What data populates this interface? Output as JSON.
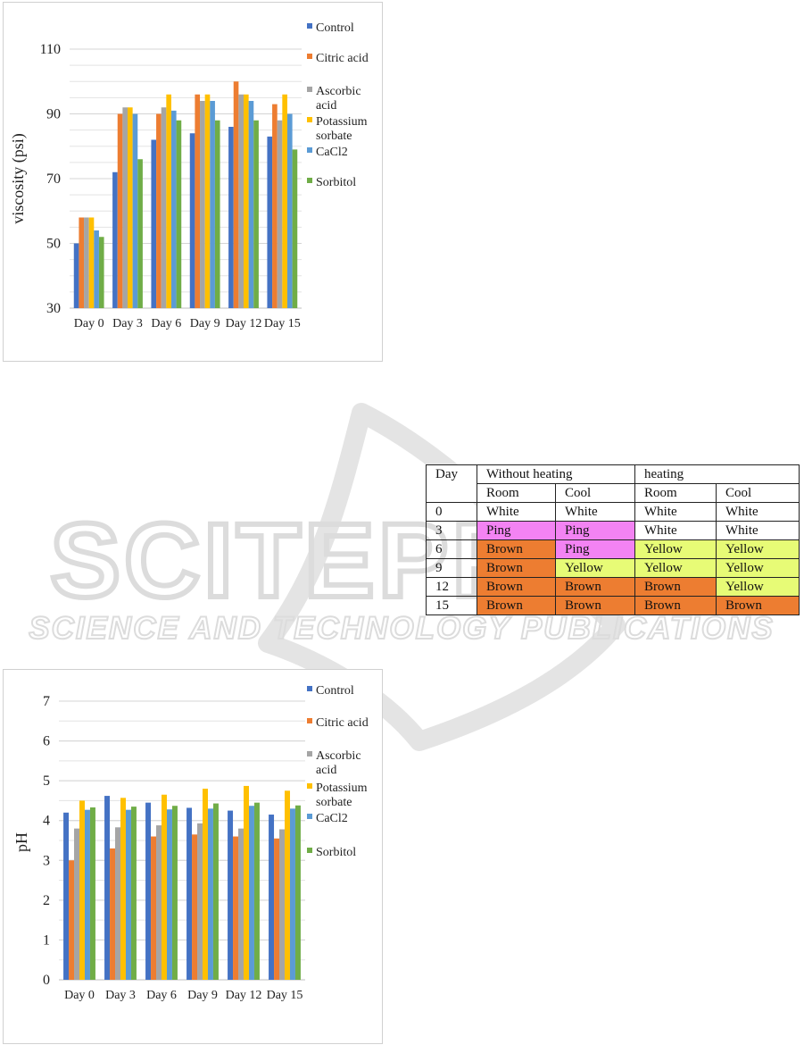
{
  "chart_data": [
    {
      "type": "bar",
      "title": "",
      "xlabel": "",
      "ylabel": "viscosity (psi)",
      "ylim": [
        30,
        110
      ],
      "yticks": [
        30,
        50,
        70,
        90,
        110
      ],
      "grid": true,
      "legend_position": "right",
      "categories": [
        "Day 0",
        "Day 3",
        "Day 6",
        "Day 9",
        "Day 12",
        "Day 15"
      ],
      "series": [
        {
          "name": "Control",
          "color": "#4472C4",
          "values": [
            50,
            72,
            82,
            84,
            86,
            83
          ]
        },
        {
          "name": "Citric acid",
          "color": "#ED7D31",
          "values": [
            58,
            90,
            90,
            96,
            100,
            93
          ]
        },
        {
          "name": "Ascorbic acid",
          "color": "#A5A5A5",
          "values": [
            58,
            92,
            92,
            94,
            96,
            88
          ]
        },
        {
          "name": "Potassium sorbate",
          "color": "#FFC000",
          "values": [
            58,
            92,
            96,
            96,
            96,
            96
          ]
        },
        {
          "name": "CaCl2",
          "color": "#5B9BD5",
          "values": [
            54,
            90,
            91,
            94,
            94,
            90
          ]
        },
        {
          "name": "Sorbitol",
          "color": "#70AD47",
          "values": [
            52,
            76,
            88,
            88,
            88,
            79
          ]
        }
      ]
    },
    {
      "type": "bar",
      "title": "",
      "xlabel": "",
      "ylabel": "pH",
      "ylim": [
        0,
        7
      ],
      "yticks": [
        0,
        1,
        2,
        3,
        4,
        5,
        6,
        7
      ],
      "grid": true,
      "legend_position": "right",
      "categories": [
        "Day 0",
        "Day 3",
        "Day 6",
        "Day 9",
        "Day 12",
        "Day 15"
      ],
      "series": [
        {
          "name": "Control",
          "color": "#4472C4",
          "values": [
            4.2,
            4.62,
            4.45,
            4.32,
            4.25,
            4.15
          ]
        },
        {
          "name": "Citric acid",
          "color": "#ED7D31",
          "values": [
            3.0,
            3.3,
            3.6,
            3.65,
            3.6,
            3.55
          ]
        },
        {
          "name": "Ascorbic acid",
          "color": "#A5A5A5",
          "values": [
            3.8,
            3.83,
            3.88,
            3.93,
            3.8,
            3.78
          ]
        },
        {
          "name": "Potassium sorbate",
          "color": "#FFC000",
          "values": [
            4.5,
            4.57,
            4.65,
            4.8,
            4.87,
            4.75
          ]
        },
        {
          "name": "CaCl2",
          "color": "#5B9BD5",
          "values": [
            4.27,
            4.27,
            4.28,
            4.3,
            4.37,
            4.3
          ]
        },
        {
          "name": "Sorbitol",
          "color": "#70AD47",
          "values": [
            4.33,
            4.35,
            4.37,
            4.43,
            4.45,
            4.38
          ]
        }
      ]
    }
  ],
  "legend_display": [
    [
      "Control"
    ],
    [
      "Citric acid"
    ],
    [
      "Ascorbic",
      "acid"
    ],
    [
      "Potassium",
      "sorbate"
    ],
    [
      "CaCl2"
    ],
    [
      "Sorbitol"
    ]
  ],
  "table": {
    "header_day": "Day",
    "group_without": "Without heating",
    "group_heating": "heating",
    "sub_headers": [
      "Room",
      "Cool",
      "Room",
      "Cool"
    ],
    "rows": [
      {
        "day": "0",
        "cells": [
          "White",
          "White",
          "White",
          "White"
        ]
      },
      {
        "day": "3",
        "cells": [
          "Ping",
          "Ping",
          "White",
          "White"
        ]
      },
      {
        "day": "6",
        "cells": [
          "Brown",
          "Ping",
          "Yellow",
          "Yellow"
        ]
      },
      {
        "day": "9",
        "cells": [
          "Brown",
          "Yellow",
          "Yellow",
          "Yellow"
        ]
      },
      {
        "day": "12",
        "cells": [
          "Brown",
          "Brown",
          "Brown",
          "Yellow"
        ]
      },
      {
        "day": "15",
        "cells": [
          "Brown",
          "Brown",
          "Brown",
          "Brown"
        ]
      }
    ],
    "cell_colors": {
      "White": "#ffffff",
      "Ping": "#F383F3",
      "Brown": "#ED7D31",
      "Yellow": "#E7FB76"
    }
  },
  "watermark": {
    "line1": "SCITEPRESS",
    "line2": "SCIENCE AND TECHNOLOGY PUBLICATIONS",
    "color": "#dedede"
  }
}
